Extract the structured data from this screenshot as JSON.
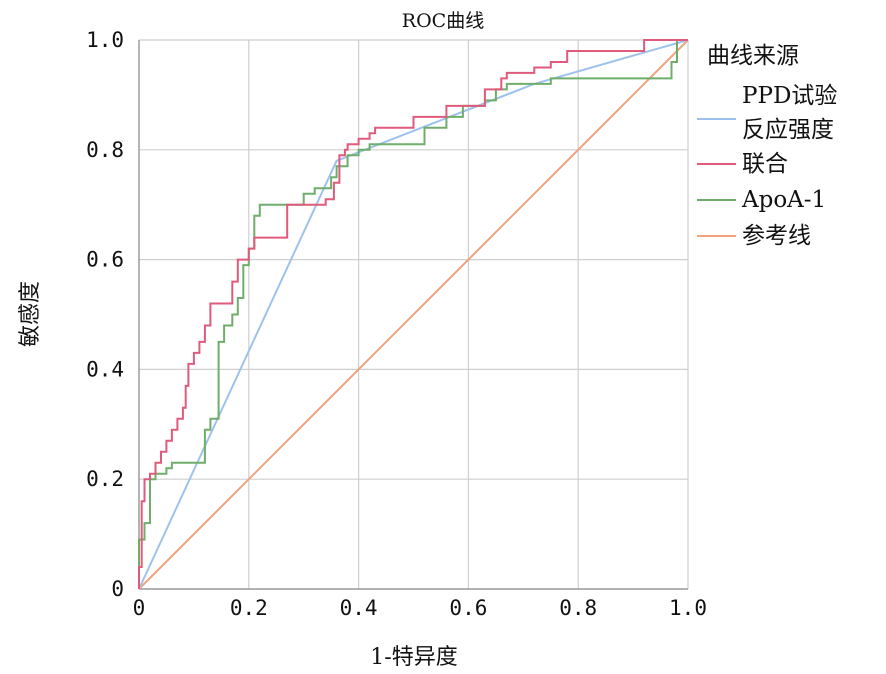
{
  "chart_data": {
    "type": "line",
    "title": "ROC曲线",
    "xlabel": "1-特异度",
    "ylabel": "敏感度",
    "xlim": [
      0,
      1
    ],
    "ylim": [
      0,
      1
    ],
    "grid": true,
    "x_ticks": [
      {
        "value": 0,
        "label": "0"
      },
      {
        "value": 0.2,
        "label": "0.2"
      },
      {
        "value": 0.4,
        "label": "0.4"
      },
      {
        "value": 0.6,
        "label": "0.6"
      },
      {
        "value": 0.8,
        "label": "0.8"
      },
      {
        "value": 1.0,
        "label": "1.0"
      }
    ],
    "y_ticks": [
      {
        "value": 0,
        "label": "0"
      },
      {
        "value": 0.2,
        "label": "0.2"
      },
      {
        "value": 0.4,
        "label": "0.4"
      },
      {
        "value": 0.6,
        "label": "0.6"
      },
      {
        "value": 0.8,
        "label": "0.8"
      },
      {
        "value": 1.0,
        "label": "1.0"
      }
    ],
    "legend": {
      "title": "曲线来源",
      "placement": "right",
      "entries": [
        {
          "lines": [
            "PPD试验",
            "反应强度"
          ],
          "color": "#9ec2ee"
        },
        {
          "lines": [
            "联合"
          ],
          "color": "#e05a7c"
        },
        {
          "lines": [
            "ApoA-1"
          ],
          "color": "#6fae6a"
        },
        {
          "lines": [
            "参考线"
          ],
          "color": "#f2a27d"
        }
      ]
    },
    "series": [
      {
        "name": "PPD试验反应强度",
        "color": "#9ec2ee",
        "x": [
          0,
          0.36,
          0.72,
          1.0
        ],
        "y": [
          0,
          0.78,
          0.92,
          1.0
        ]
      },
      {
        "name": "联合",
        "color": "#e05a7c",
        "x": [
          0,
          0,
          0.005,
          0.005,
          0.01,
          0.01,
          0.02,
          0.02,
          0.03,
          0.03,
          0.04,
          0.04,
          0.05,
          0.05,
          0.06,
          0.06,
          0.07,
          0.07,
          0.08,
          0.08,
          0.085,
          0.085,
          0.09,
          0.09,
          0.1,
          0.1,
          0.11,
          0.11,
          0.12,
          0.12,
          0.13,
          0.13,
          0.17,
          0.17,
          0.18,
          0.18,
          0.2,
          0.2,
          0.21,
          0.21,
          0.27,
          0.27,
          0.34,
          0.34,
          0.355,
          0.355,
          0.365,
          0.365,
          0.375,
          0.375,
          0.38,
          0.38,
          0.4,
          0.4,
          0.42,
          0.42,
          0.43,
          0.43,
          0.5,
          0.5,
          0.56,
          0.56,
          0.63,
          0.63,
          0.66,
          0.66,
          0.67,
          0.67,
          0.72,
          0.72,
          0.75,
          0.75,
          0.78,
          0.78,
          0.92,
          0.92,
          1.0
        ],
        "y": [
          0,
          0.04,
          0.04,
          0.16,
          0.16,
          0.2,
          0.2,
          0.21,
          0.21,
          0.23,
          0.23,
          0.25,
          0.25,
          0.27,
          0.27,
          0.29,
          0.29,
          0.31,
          0.31,
          0.33,
          0.33,
          0.37,
          0.37,
          0.41,
          0.41,
          0.43,
          0.43,
          0.45,
          0.45,
          0.48,
          0.48,
          0.52,
          0.52,
          0.56,
          0.56,
          0.6,
          0.6,
          0.62,
          0.62,
          0.64,
          0.64,
          0.7,
          0.7,
          0.71,
          0.71,
          0.74,
          0.74,
          0.79,
          0.79,
          0.8,
          0.8,
          0.81,
          0.81,
          0.82,
          0.82,
          0.83,
          0.83,
          0.84,
          0.84,
          0.86,
          0.86,
          0.88,
          0.88,
          0.91,
          0.91,
          0.93,
          0.93,
          0.94,
          0.94,
          0.95,
          0.95,
          0.96,
          0.96,
          0.98,
          0.98,
          1.0,
          1.0
        ]
      },
      {
        "name": "ApoA-1",
        "color": "#6fae6a",
        "x": [
          0,
          0,
          0.01,
          0.01,
          0.02,
          0.02,
          0.03,
          0.03,
          0.05,
          0.05,
          0.06,
          0.06,
          0.12,
          0.12,
          0.13,
          0.13,
          0.145,
          0.145,
          0.155,
          0.155,
          0.17,
          0.17,
          0.18,
          0.18,
          0.19,
          0.19,
          0.2,
          0.2,
          0.21,
          0.21,
          0.22,
          0.22,
          0.3,
          0.3,
          0.32,
          0.32,
          0.35,
          0.35,
          0.36,
          0.36,
          0.38,
          0.38,
          0.4,
          0.4,
          0.42,
          0.42,
          0.52,
          0.52,
          0.56,
          0.56,
          0.59,
          0.59,
          0.63,
          0.63,
          0.65,
          0.65,
          0.67,
          0.67,
          0.75,
          0.75,
          0.97,
          0.97,
          0.98,
          0.98,
          1.0
        ],
        "y": [
          0,
          0.09,
          0.09,
          0.12,
          0.12,
          0.2,
          0.2,
          0.21,
          0.21,
          0.22,
          0.22,
          0.23,
          0.23,
          0.29,
          0.29,
          0.31,
          0.31,
          0.45,
          0.45,
          0.48,
          0.48,
          0.5,
          0.5,
          0.53,
          0.53,
          0.59,
          0.59,
          0.62,
          0.62,
          0.68,
          0.68,
          0.7,
          0.7,
          0.72,
          0.72,
          0.73,
          0.73,
          0.75,
          0.75,
          0.77,
          0.77,
          0.79,
          0.79,
          0.8,
          0.8,
          0.81,
          0.81,
          0.84,
          0.84,
          0.86,
          0.86,
          0.88,
          0.88,
          0.89,
          0.89,
          0.91,
          0.91,
          0.92,
          0.92,
          0.93,
          0.93,
          0.96,
          0.96,
          1.0,
          1.0
        ]
      },
      {
        "name": "参考线",
        "color": "#f2a27d",
        "x": [
          0,
          1.0
        ],
        "y": [
          0,
          1.0
        ]
      }
    ]
  }
}
